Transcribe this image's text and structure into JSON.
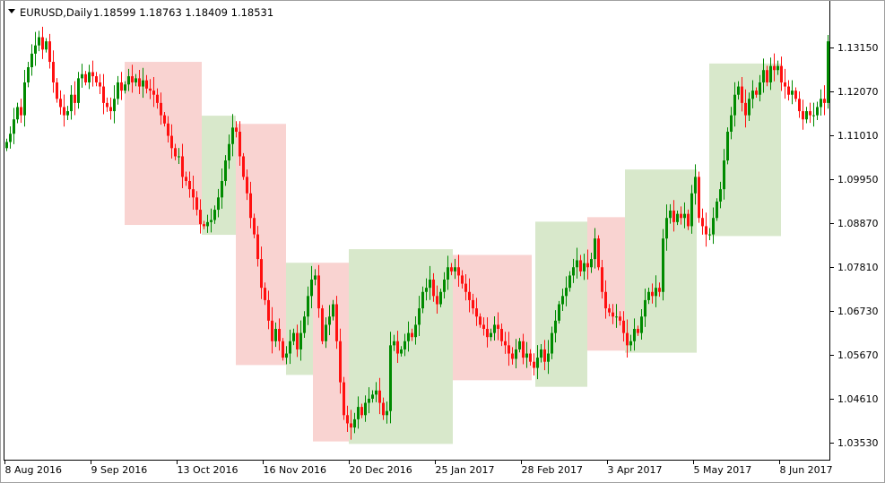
{
  "header": {
    "symbol_label": "EURUSD,Daily",
    "quote": "1.18599 1.18763 1.18409 1.18531"
  },
  "chart_data": {
    "type": "candlestick",
    "symbol": "EURUSD",
    "timeframe": "Daily",
    "colors": {
      "up": "#008a00",
      "down": "#ff1010",
      "zone_sell": "#f9d3d1",
      "zone_buy": "#d8e8cb"
    },
    "y_ticks": [
      "1.13150",
      "1.12070",
      "1.11010",
      "1.09950",
      "1.08870",
      "1.07810",
      "1.06730",
      "1.05670",
      "1.04610",
      "1.03530"
    ],
    "ylim": [
      1.0312,
      1.14
    ],
    "x_ticks": [
      {
        "label": "8 Aug 2016",
        "bar": 0
      },
      {
        "label": "9 Sep 2016",
        "bar": 24
      },
      {
        "label": "13 Oct 2016",
        "bar": 48
      },
      {
        "label": "16 Nov 2016",
        "bar": 72
      },
      {
        "label": "20 Dec 2016",
        "bar": 96
      },
      {
        "label": "25 Jan 2017",
        "bar": 120
      },
      {
        "label": "28 Feb 2017",
        "bar": 144
      },
      {
        "label": "3 Apr 2017",
        "bar": 168
      },
      {
        "label": "5 May 2017",
        "bar": 192
      },
      {
        "label": "8 Jun 2017",
        "bar": 216
      }
    ],
    "grid": false,
    "first_open": 1.107,
    "close": [
      1.1085,
      1.1105,
      1.114,
      1.117,
      1.115,
      1.123,
      1.1267,
      1.13,
      1.132,
      1.134,
      1.131,
      1.133,
      1.128,
      1.123,
      1.119,
      1.117,
      1.115,
      1.116,
      1.12,
      1.118,
      1.124,
      1.125,
      1.123,
      1.1255,
      1.1245,
      1.123,
      1.122,
      1.118,
      1.117,
      1.116,
      1.119,
      1.123,
      1.121,
      1.1225,
      1.1245,
      1.123,
      1.124,
      1.122,
      1.1235,
      1.1215,
      1.121,
      1.12,
      1.118,
      1.115,
      1.113,
      1.11,
      1.107,
      1.105,
      1.105,
      1.1,
      1.099,
      1.097,
      1.095,
      1.092,
      1.0885,
      1.088,
      1.089,
      1.0895,
      1.092,
      1.095,
      1.099,
      1.104,
      1.108,
      1.112,
      1.111,
      1.105,
      1.1,
      1.096,
      1.09,
      1.086,
      1.08,
      1.073,
      1.07,
      1.065,
      1.06,
      1.063,
      1.06,
      1.056,
      1.057,
      1.06,
      1.062,
      1.058,
      1.062,
      1.066,
      1.071,
      1.075,
      1.076,
      1.068,
      1.06,
      1.064,
      1.066,
      1.069,
      1.06,
      1.05,
      1.042,
      1.04,
      1.039,
      1.041,
      1.044,
      1.042,
      1.045,
      1.046,
      1.047,
      1.048,
      1.045,
      1.042,
      1.043,
      1.059,
      1.06,
      1.057,
      1.058,
      1.06,
      1.062,
      1.061,
      1.064,
      1.068,
      1.072,
      1.073,
      1.075,
      1.071,
      1.069,
      1.072,
      1.075,
      1.078,
      1.077,
      1.078,
      1.076,
      1.074,
      1.072,
      1.07,
      1.068,
      1.066,
      1.064,
      1.063,
      1.061,
      1.062,
      1.064,
      1.063,
      1.06,
      1.059,
      1.057,
      1.0557,
      1.058,
      1.06,
      1.056,
      1.057,
      1.055,
      1.0535,
      1.056,
      1.058,
      1.055,
      1.057,
      1.062,
      1.065,
      1.069,
      1.071,
      1.073,
      1.076,
      1.078,
      1.0797,
      1.077,
      1.079,
      1.078,
      1.08,
      1.085,
      1.078,
      1.072,
      1.068,
      1.067,
      1.066,
      1.066,
      1.065,
      1.062,
      1.059,
      1.06,
      1.063,
      1.062,
      1.066,
      1.07,
      1.072,
      1.071,
      1.073,
      1.072,
      1.085,
      1.09,
      1.0918,
      1.089,
      1.091,
      1.09,
      1.091,
      1.088,
      1.096,
      1.1,
      1.09,
      1.088,
      1.086,
      1.086,
      1.09,
      1.094,
      1.097,
      1.104,
      1.111,
      1.115,
      1.12,
      1.122,
      1.118,
      1.115,
      1.119,
      1.121,
      1.12,
      1.123,
      1.126,
      1.123,
      1.127,
      1.126,
      1.127,
      1.123,
      1.122,
      1.12,
      1.121,
      1.119,
      1.116,
      1.114,
      1.116,
      1.115,
      1.115,
      1.117,
      1.119,
      1.118,
      1.133
    ],
    "zones": [
      {
        "type": "sell",
        "from_bar": 33.5,
        "to_bar": 55,
        "top": 1.128,
        "bottom": 1.0883
      },
      {
        "type": "buy",
        "from_bar": 55,
        "to_bar": 64.5,
        "top": 1.1149,
        "bottom": 1.0859
      },
      {
        "type": "sell",
        "from_bar": 64.5,
        "to_bar": 78.5,
        "top": 1.1129,
        "bottom": 1.0542
      },
      {
        "type": "buy",
        "from_bar": 78.5,
        "to_bar": 86,
        "top": 1.0791,
        "bottom": 1.0518
      },
      {
        "type": "sell",
        "from_bar": 86,
        "to_bar": 96,
        "top": 1.0791,
        "bottom": 1.0356
      },
      {
        "type": "buy",
        "from_bar": 96,
        "to_bar": 125,
        "top": 1.0824,
        "bottom": 1.035
      },
      {
        "type": "sell",
        "from_bar": 125,
        "to_bar": 147,
        "top": 1.081,
        "bottom": 1.0505
      },
      {
        "type": "buy",
        "from_bar": 148,
        "to_bar": 162.5,
        "top": 1.0891,
        "bottom": 1.0489
      },
      {
        "type": "sell",
        "from_bar": 162.5,
        "to_bar": 173,
        "top": 1.0902,
        "bottom": 1.0577
      },
      {
        "type": "buy",
        "from_bar": 173,
        "to_bar": 193,
        "top": 1.1018,
        "bottom": 1.0572
      },
      {
        "type": "buy",
        "from_bar": 196.5,
        "to_bar": 216.5,
        "top": 1.1276,
        "bottom": 1.0856
      }
    ]
  }
}
